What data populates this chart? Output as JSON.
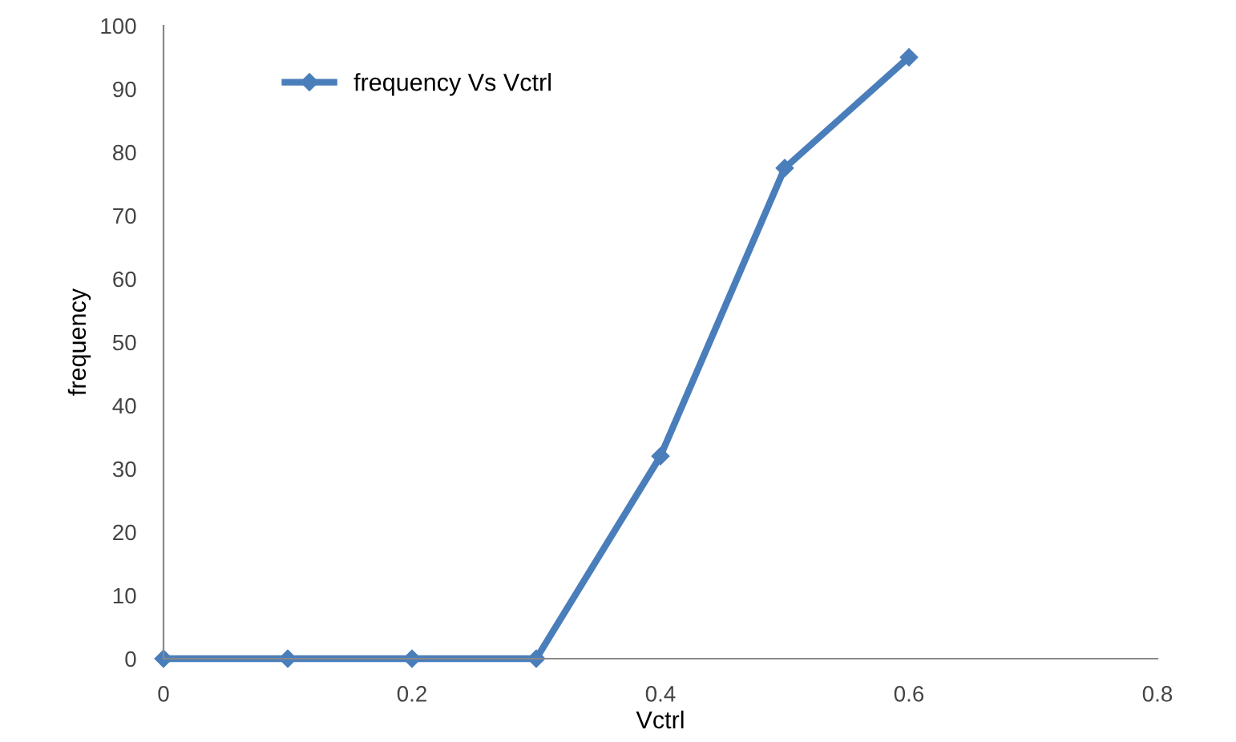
{
  "chart_data": {
    "type": "line",
    "xlabel": "Vctrl",
    "ylabel": "frequency",
    "x": [
      0,
      0.1,
      0.2,
      0.3,
      0.4,
      0.5,
      0.6
    ],
    "series": [
      {
        "name": "frequency Vs Vctrl",
        "color": "#4a7ebb",
        "values": [
          0,
          0,
          0,
          0,
          32,
          77.5,
          95
        ]
      }
    ],
    "xlim": [
      0,
      0.8
    ],
    "xticks": [
      0,
      0.2,
      0.4,
      0.6,
      0.8
    ],
    "ylim": [
      0,
      100
    ],
    "yticks": [
      0,
      10,
      20,
      30,
      40,
      50,
      60,
      70,
      80,
      90,
      100
    ],
    "marker": "diamond",
    "grid": false,
    "legend": "top left"
  }
}
